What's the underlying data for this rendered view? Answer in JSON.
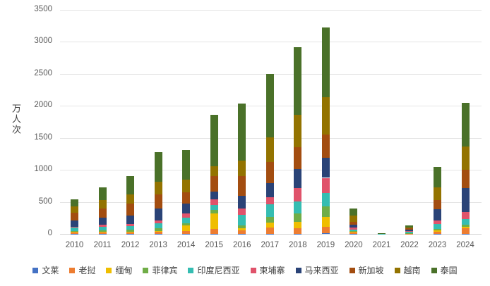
{
  "chart_data": {
    "type": "bar",
    "stacked": true,
    "title": "",
    "xlabel": "",
    "ylabel": "万人次",
    "ylim": [
      0,
      3500
    ],
    "y_ticks": [
      0,
      500,
      1000,
      1500,
      2000,
      2500,
      3000,
      3500
    ],
    "grid": true,
    "legend_position": "bottom",
    "categories": [
      "2010",
      "2011",
      "2012",
      "2013",
      "2014",
      "2015",
      "2016",
      "2017",
      "2018",
      "2019",
      "2020",
      "2021",
      "2022",
      "2023",
      "2024"
    ],
    "series": [
      {
        "name": "文莱",
        "color": "#4472C4",
        "values": [
          4,
          4,
          4,
          4,
          4,
          4,
          4,
          5,
          5,
          7,
          2,
          0,
          1,
          3,
          4
        ]
      },
      {
        "name": "老挝",
        "color": "#ED7D31",
        "values": [
          16,
          19,
          20,
          25,
          42,
          74,
          55,
          92,
          81,
          102,
          15,
          2,
          4,
          30,
          81
        ]
      },
      {
        "name": "缅甸",
        "color": "#EFBE00",
        "values": [
          8,
          9,
          10,
          12,
          85,
          240,
          25,
          77,
          103,
          150,
          12,
          1,
          2,
          18,
          22
        ]
      },
      {
        "name": "菲律宾",
        "color": "#70AD47",
        "values": [
          21,
          24,
          27,
          43,
          39,
          55,
          52,
          88,
          125,
          174,
          15,
          1,
          4,
          26,
          33
        ]
      },
      {
        "name": "印度尼西亚",
        "color": "#35BDB2",
        "values": [
          47,
          57,
          64,
          81,
          88,
          80,
          159,
          203,
          196,
          210,
          23,
          1,
          25,
          74,
          96
        ]
      },
      {
        "name": "柬埔寨",
        "color": "#E0536B",
        "values": [
          18,
          25,
          28,
          46,
          56,
          85,
          100,
          103,
          203,
          232,
          35,
          1,
          8,
          63,
          100
        ]
      },
      {
        "name": "马来西亚",
        "color": "#2A4377",
        "values": [
          100,
          115,
          135,
          180,
          161,
          118,
          196,
          229,
          302,
          318,
          40,
          1,
          20,
          166,
          376
        ]
      },
      {
        "name": "新加坡",
        "color": "#A34D10",
        "values": [
          117,
          143,
          190,
          227,
          172,
          247,
          313,
          324,
          335,
          363,
          44,
          1,
          25,
          147,
          288
        ]
      },
      {
        "name": "越南",
        "color": "#937300",
        "values": [
          100,
          135,
          140,
          191,
          195,
          158,
          240,
          387,
          505,
          575,
          100,
          1,
          15,
          203,
          361
        ]
      },
      {
        "name": "泰国",
        "color": "#4A7129",
        "values": [
          112,
          190,
          290,
          465,
          463,
          804,
          896,
          995,
          1062,
          1096,
          110,
          2,
          25,
          317,
          689
        ]
      }
    ],
    "totals": [
      543,
      721,
      908,
      1274,
      1305,
      1865,
      2040,
      2503,
      2917,
      3227,
      396,
      11,
      129,
      1047,
      2050
    ]
  }
}
